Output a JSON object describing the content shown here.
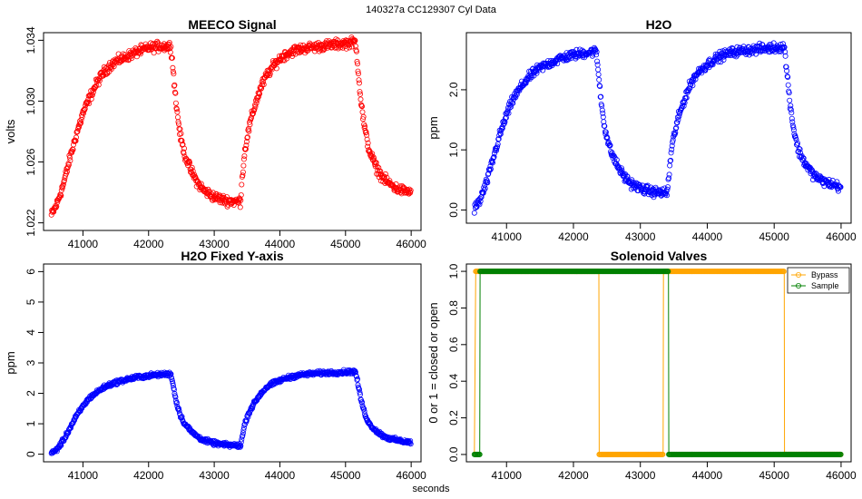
{
  "figure": {
    "supertitle": "140327a    CC129307   Cyl Data",
    "xlabel": "seconds"
  },
  "chart_data": [
    {
      "type": "scatter",
      "title": "MEECO Signal",
      "xlabel": "",
      "ylabel": "volts",
      "xlim": [
        40400,
        46150
      ],
      "ylim": [
        1.0215,
        1.0345
      ],
      "xticks": [
        41000,
        42000,
        43000,
        44000,
        45000,
        46000
      ],
      "yticks": [
        1.022,
        1.026,
        1.03,
        1.034
      ],
      "ytick_labels": [
        "1.022",
        "1.026",
        "1.030",
        "1.034"
      ],
      "grid": false,
      "color": "#ff0000",
      "series": [
        {
          "name": "MEECO Signal",
          "x": [
            40520,
            40600,
            40700,
            40800,
            40900,
            41000,
            41100,
            41200,
            41300,
            41400,
            41500,
            41600,
            41800,
            42000,
            42200,
            42340,
            42380,
            42420,
            42480,
            42550,
            42650,
            42750,
            42850,
            43000,
            43150,
            43300,
            43400,
            43430,
            43460,
            43500,
            43560,
            43640,
            43720,
            43800,
            43900,
            44000,
            44100,
            44200,
            44300,
            44400,
            44600,
            44800,
            45000,
            45150,
            45190,
            45230,
            45290,
            45360,
            45460,
            45560,
            45660,
            45800,
            46000
          ],
          "values": [
            1.0225,
            1.0232,
            1.0245,
            1.0262,
            1.0278,
            1.0292,
            1.0302,
            1.0311,
            1.0318,
            1.0323,
            1.0326,
            1.0328,
            1.0332,
            1.0335,
            1.0336,
            1.0336,
            1.0318,
            1.0298,
            1.0278,
            1.0265,
            1.0254,
            1.0246,
            1.0241,
            1.0237,
            1.0235,
            1.0234,
            1.0234,
            1.0252,
            1.0265,
            1.0276,
            1.0288,
            1.03,
            1.031,
            1.0317,
            1.0323,
            1.0328,
            1.0331,
            1.0333,
            1.0334,
            1.0335,
            1.0336,
            1.0337,
            1.0338,
            1.0339,
            1.0322,
            1.0302,
            1.0282,
            1.0268,
            1.0257,
            1.025,
            1.0246,
            1.0242,
            1.024
          ]
        }
      ]
    },
    {
      "type": "scatter",
      "title": "H2O",
      "xlabel": "",
      "ylabel": "ppm",
      "xlim": [
        40400,
        46150
      ],
      "ylim": [
        -0.22,
        2.95
      ],
      "xticks": [
        41000,
        42000,
        43000,
        44000,
        45000,
        46000
      ],
      "yticks": [
        0.0,
        1.0,
        2.0
      ],
      "ytick_labels": [
        "0.0",
        "1.0",
        "2.0"
      ],
      "grid": false,
      "color": "#0000ff",
      "series": [
        {
          "name": "H2O",
          "x": [
            40520,
            40600,
            40700,
            40800,
            40900,
            41000,
            41100,
            41200,
            41300,
            41400,
            41500,
            41600,
            41800,
            42000,
            42200,
            42340,
            42380,
            42420,
            42480,
            42550,
            42650,
            42750,
            42850,
            43000,
            43150,
            43300,
            43400,
            43430,
            43460,
            43500,
            43560,
            43640,
            43720,
            43800,
            43900,
            44000,
            44100,
            44200,
            44300,
            44400,
            44600,
            44800,
            45000,
            45150,
            45190,
            45230,
            45290,
            45360,
            45460,
            45560,
            45660,
            45800,
            46000
          ],
          "values": [
            0.02,
            0.15,
            0.45,
            0.85,
            1.25,
            1.58,
            1.85,
            2.02,
            2.17,
            2.28,
            2.36,
            2.42,
            2.52,
            2.58,
            2.62,
            2.64,
            2.2,
            1.75,
            1.3,
            1.0,
            0.75,
            0.57,
            0.45,
            0.36,
            0.31,
            0.29,
            0.28,
            0.6,
            0.95,
            1.22,
            1.5,
            1.78,
            2.02,
            2.2,
            2.33,
            2.42,
            2.5,
            2.56,
            2.6,
            2.63,
            2.66,
            2.68,
            2.7,
            2.72,
            2.3,
            1.85,
            1.35,
            1.0,
            0.78,
            0.62,
            0.52,
            0.45,
            0.38
          ]
        }
      ]
    },
    {
      "type": "scatter",
      "title": "H2O Fixed Y-axis",
      "xlabel": "",
      "ylabel": "ppm",
      "xlim": [
        40400,
        46150
      ],
      "ylim": [
        -0.25,
        6.25
      ],
      "xticks": [
        41000,
        42000,
        43000,
        44000,
        45000,
        46000
      ],
      "yticks": [
        0,
        1,
        2,
        3,
        4,
        5,
        6
      ],
      "ytick_labels": [
        "0",
        "1",
        "2",
        "3",
        "4",
        "5",
        "6"
      ],
      "grid": false,
      "color": "#0000ff",
      "series": [
        {
          "name": "H2O",
          "x": [
            40520,
            40600,
            40700,
            40800,
            40900,
            41000,
            41100,
            41200,
            41300,
            41400,
            41500,
            41600,
            41800,
            42000,
            42200,
            42340,
            42380,
            42420,
            42480,
            42550,
            42650,
            42750,
            42850,
            43000,
            43150,
            43300,
            43400,
            43430,
            43460,
            43500,
            43560,
            43640,
            43720,
            43800,
            43900,
            44000,
            44100,
            44200,
            44300,
            44400,
            44600,
            44800,
            45000,
            45150,
            45190,
            45230,
            45290,
            45360,
            45460,
            45560,
            45660,
            45800,
            46000
          ],
          "values": [
            0.02,
            0.15,
            0.45,
            0.85,
            1.25,
            1.58,
            1.85,
            2.02,
            2.17,
            2.28,
            2.36,
            2.42,
            2.52,
            2.58,
            2.62,
            2.64,
            2.2,
            1.75,
            1.3,
            1.0,
            0.75,
            0.57,
            0.45,
            0.36,
            0.31,
            0.29,
            0.28,
            0.6,
            0.95,
            1.22,
            1.5,
            1.78,
            2.02,
            2.2,
            2.33,
            2.42,
            2.5,
            2.56,
            2.6,
            2.63,
            2.66,
            2.68,
            2.7,
            2.72,
            2.3,
            1.85,
            1.35,
            1.0,
            0.78,
            0.62,
            0.52,
            0.45,
            0.38
          ]
        }
      ]
    },
    {
      "type": "line",
      "title": "Solenoid Valves",
      "xlabel": "",
      "ylabel": "0 or 1 = closed or open",
      "xlim": [
        40400,
        46150
      ],
      "ylim": [
        -0.04,
        1.04
      ],
      "xticks": [
        41000,
        42000,
        43000,
        44000,
        45000,
        46000
      ],
      "yticks": [
        0.0,
        0.2,
        0.4,
        0.6,
        0.8,
        1.0
      ],
      "ytick_labels": [
        "0.0",
        "0.2",
        "0.4",
        "0.6",
        "0.8",
        "1.0"
      ],
      "grid": false,
      "legend": "top-right",
      "series": [
        {
          "name": "Bypass",
          "color": "#ffa500",
          "x": [
            40520,
            40540,
            42380,
            42385,
            43340,
            43345,
            45150,
            45155,
            46000
          ],
          "values": [
            0,
            1,
            1,
            0,
            0,
            1,
            1,
            0,
            0
          ]
        },
        {
          "name": "Sample",
          "color": "#008000",
          "x": [
            40520,
            40600,
            40605,
            43420,
            43425,
            46000
          ],
          "values": [
            0,
            0,
            1,
            1,
            0,
            0
          ]
        }
      ]
    }
  ]
}
